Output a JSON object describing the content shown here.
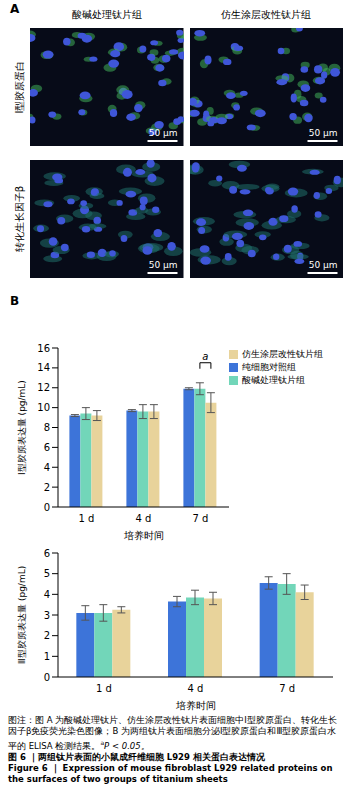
{
  "panel_a": {
    "label": "A",
    "columns": [
      "酸碱处理钛片组",
      "仿生涂层改性钛片组"
    ],
    "rows": [
      "Ⅰ型胶原蛋白",
      "转化生长因子β"
    ],
    "scale_bar": "50 μm"
  },
  "panel_b_label": "B",
  "chart_data": [
    {
      "type": "bar",
      "x_label": "培养时间",
      "y_label": "Ⅰ型胶原表达量 (pg/mL)",
      "categories": [
        "1 d",
        "4 d",
        "7 d"
      ],
      "ylim": [
        0,
        16
      ],
      "yticks": [
        0,
        2,
        4,
        6,
        8,
        10,
        12,
        14,
        16
      ],
      "legend": "upper right",
      "series": [
        {
          "name": "纯细胞对照组",
          "color": "#3d74d9",
          "values": [
            9.2,
            9.7,
            11.9
          ],
          "errors": [
            0.1,
            0.1,
            0.1
          ]
        },
        {
          "name": "酸碱处理钛片组",
          "color": "#72d6b9",
          "values": [
            9.4,
            9.6,
            11.9
          ],
          "errors": [
            0.6,
            0.7,
            0.6
          ]
        },
        {
          "name": "仿生涂层改性钛片组",
          "color": "#e8d39b",
          "values": [
            9.2,
            9.6,
            10.5
          ],
          "errors": [
            0.5,
            0.7,
            1.0
          ]
        }
      ],
      "annotations": [
        {
          "text": "a",
          "category": "7 d",
          "between": [
            "酸碱处理钛片组",
            "仿生涂层改性钛片组"
          ]
        }
      ]
    },
    {
      "type": "bar",
      "x_label": "培养时间",
      "y_label": "Ⅲ型胶原表达量 (pg/mL)",
      "categories": [
        "1 d",
        "4 d",
        "7 d"
      ],
      "ylim": [
        0,
        6
      ],
      "yticks": [
        0,
        1,
        2,
        3,
        4,
        5,
        6
      ],
      "series": [
        {
          "color": "#3d74d9",
          "values": [
            3.1,
            3.65,
            4.55
          ],
          "errors": [
            0.35,
            0.25,
            0.3
          ]
        },
        {
          "color": "#72d6b9",
          "values": [
            3.1,
            3.85,
            4.5
          ],
          "errors": [
            0.4,
            0.35,
            0.5
          ]
        },
        {
          "color": "#e8d39b",
          "values": [
            3.25,
            3.8,
            4.1
          ],
          "errors": [
            0.15,
            0.3,
            0.35
          ]
        }
      ]
    }
  ],
  "caption": {
    "note": "图注：图 A 为酸碱处理钛片、仿生涂层改性钛片表面细胞中Ⅰ型胶原蛋白、转化生长因子β免疫荧光染色图像；B 为两组钛片表面细胞分泌Ⅰ型胶原蛋白和Ⅲ型胶原蛋白水平的 ELISA 检测结果。",
    "note_mark": "a",
    "note_p": "P < 0.05。",
    "title_cn": "图 6 ｜两组钛片表面的小鼠成纤维细胞 L929 相关蛋白表达情况",
    "title_en": "Figure 6 ｜ Expression of mouse fibroblast L929 related proteins on the surfaces of two groups of titanium sheets"
  }
}
